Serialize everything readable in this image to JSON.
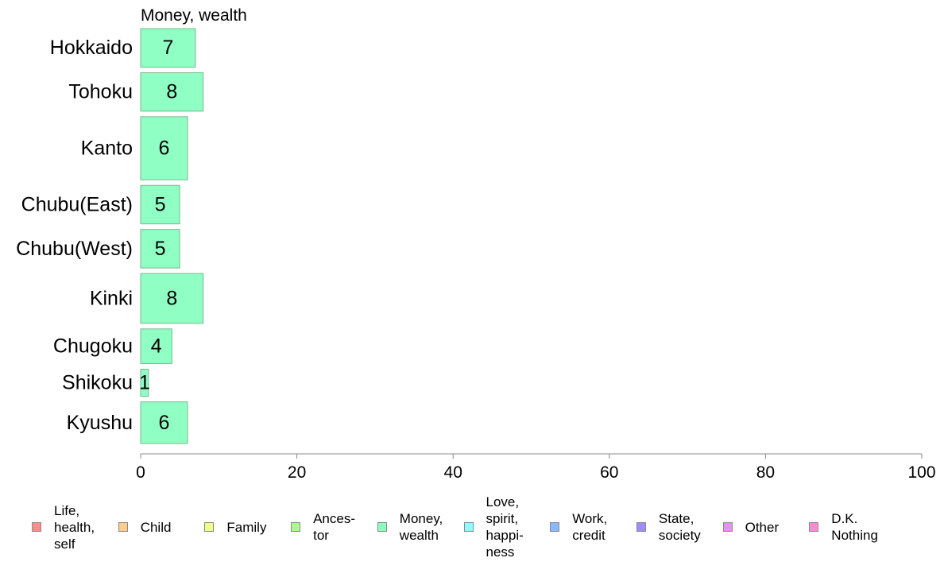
{
  "chart_data": {
    "type": "bar",
    "orientation": "horizontal",
    "title": "Money, wealth",
    "categories": [
      "Hokkaido",
      "Tohoku",
      "Kanto",
      "Chubu(East)",
      "Chubu(West)",
      "Kinki",
      "Chugoku",
      "Shikoku",
      "Kyushu"
    ],
    "values": [
      7,
      8,
      6,
      5,
      5,
      8,
      4,
      1,
      6
    ],
    "bar_labels": [
      "7",
      "8",
      "6",
      "5",
      "5",
      "8",
      "4",
      "1",
      "6"
    ],
    "relative_bar_thickness": [
      0.61,
      0.61,
      1.0,
      0.61,
      0.61,
      0.79,
      0.55,
      0.43,
      0.66
    ],
    "xlim": [
      0,
      100
    ],
    "xticks": [
      0,
      20,
      40,
      60,
      80,
      100
    ],
    "xtick_labels": [
      "0",
      "20",
      "40",
      "60",
      "80",
      "100"
    ],
    "grid": false,
    "legend_placement": "bottom",
    "bar_color": "#8fffc4",
    "bar_border_color": "#78b88e"
  },
  "legend": [
    {
      "label": "Life,\nhealth,\nself",
      "color": "#ff8c8c"
    },
    {
      "label": "Child",
      "color": "#ffcc8c"
    },
    {
      "label": "Family",
      "color": "#eeff8c"
    },
    {
      "label": "Ances-\ntor",
      "color": "#a8ff8c"
    },
    {
      "label": "Money,\nwealth",
      "color": "#8cffc0"
    },
    {
      "label": "Love,\nspirit,\nhappi-\nness",
      "color": "#8cffff"
    },
    {
      "label": "Work,\ncredit",
      "color": "#8cb8ff"
    },
    {
      "label": "State,\nsociety",
      "color": "#a08cff"
    },
    {
      "label": "Other",
      "color": "#ee8cff"
    },
    {
      "label": "D.K.\nNothing",
      "color": "#ff8cd0"
    }
  ]
}
